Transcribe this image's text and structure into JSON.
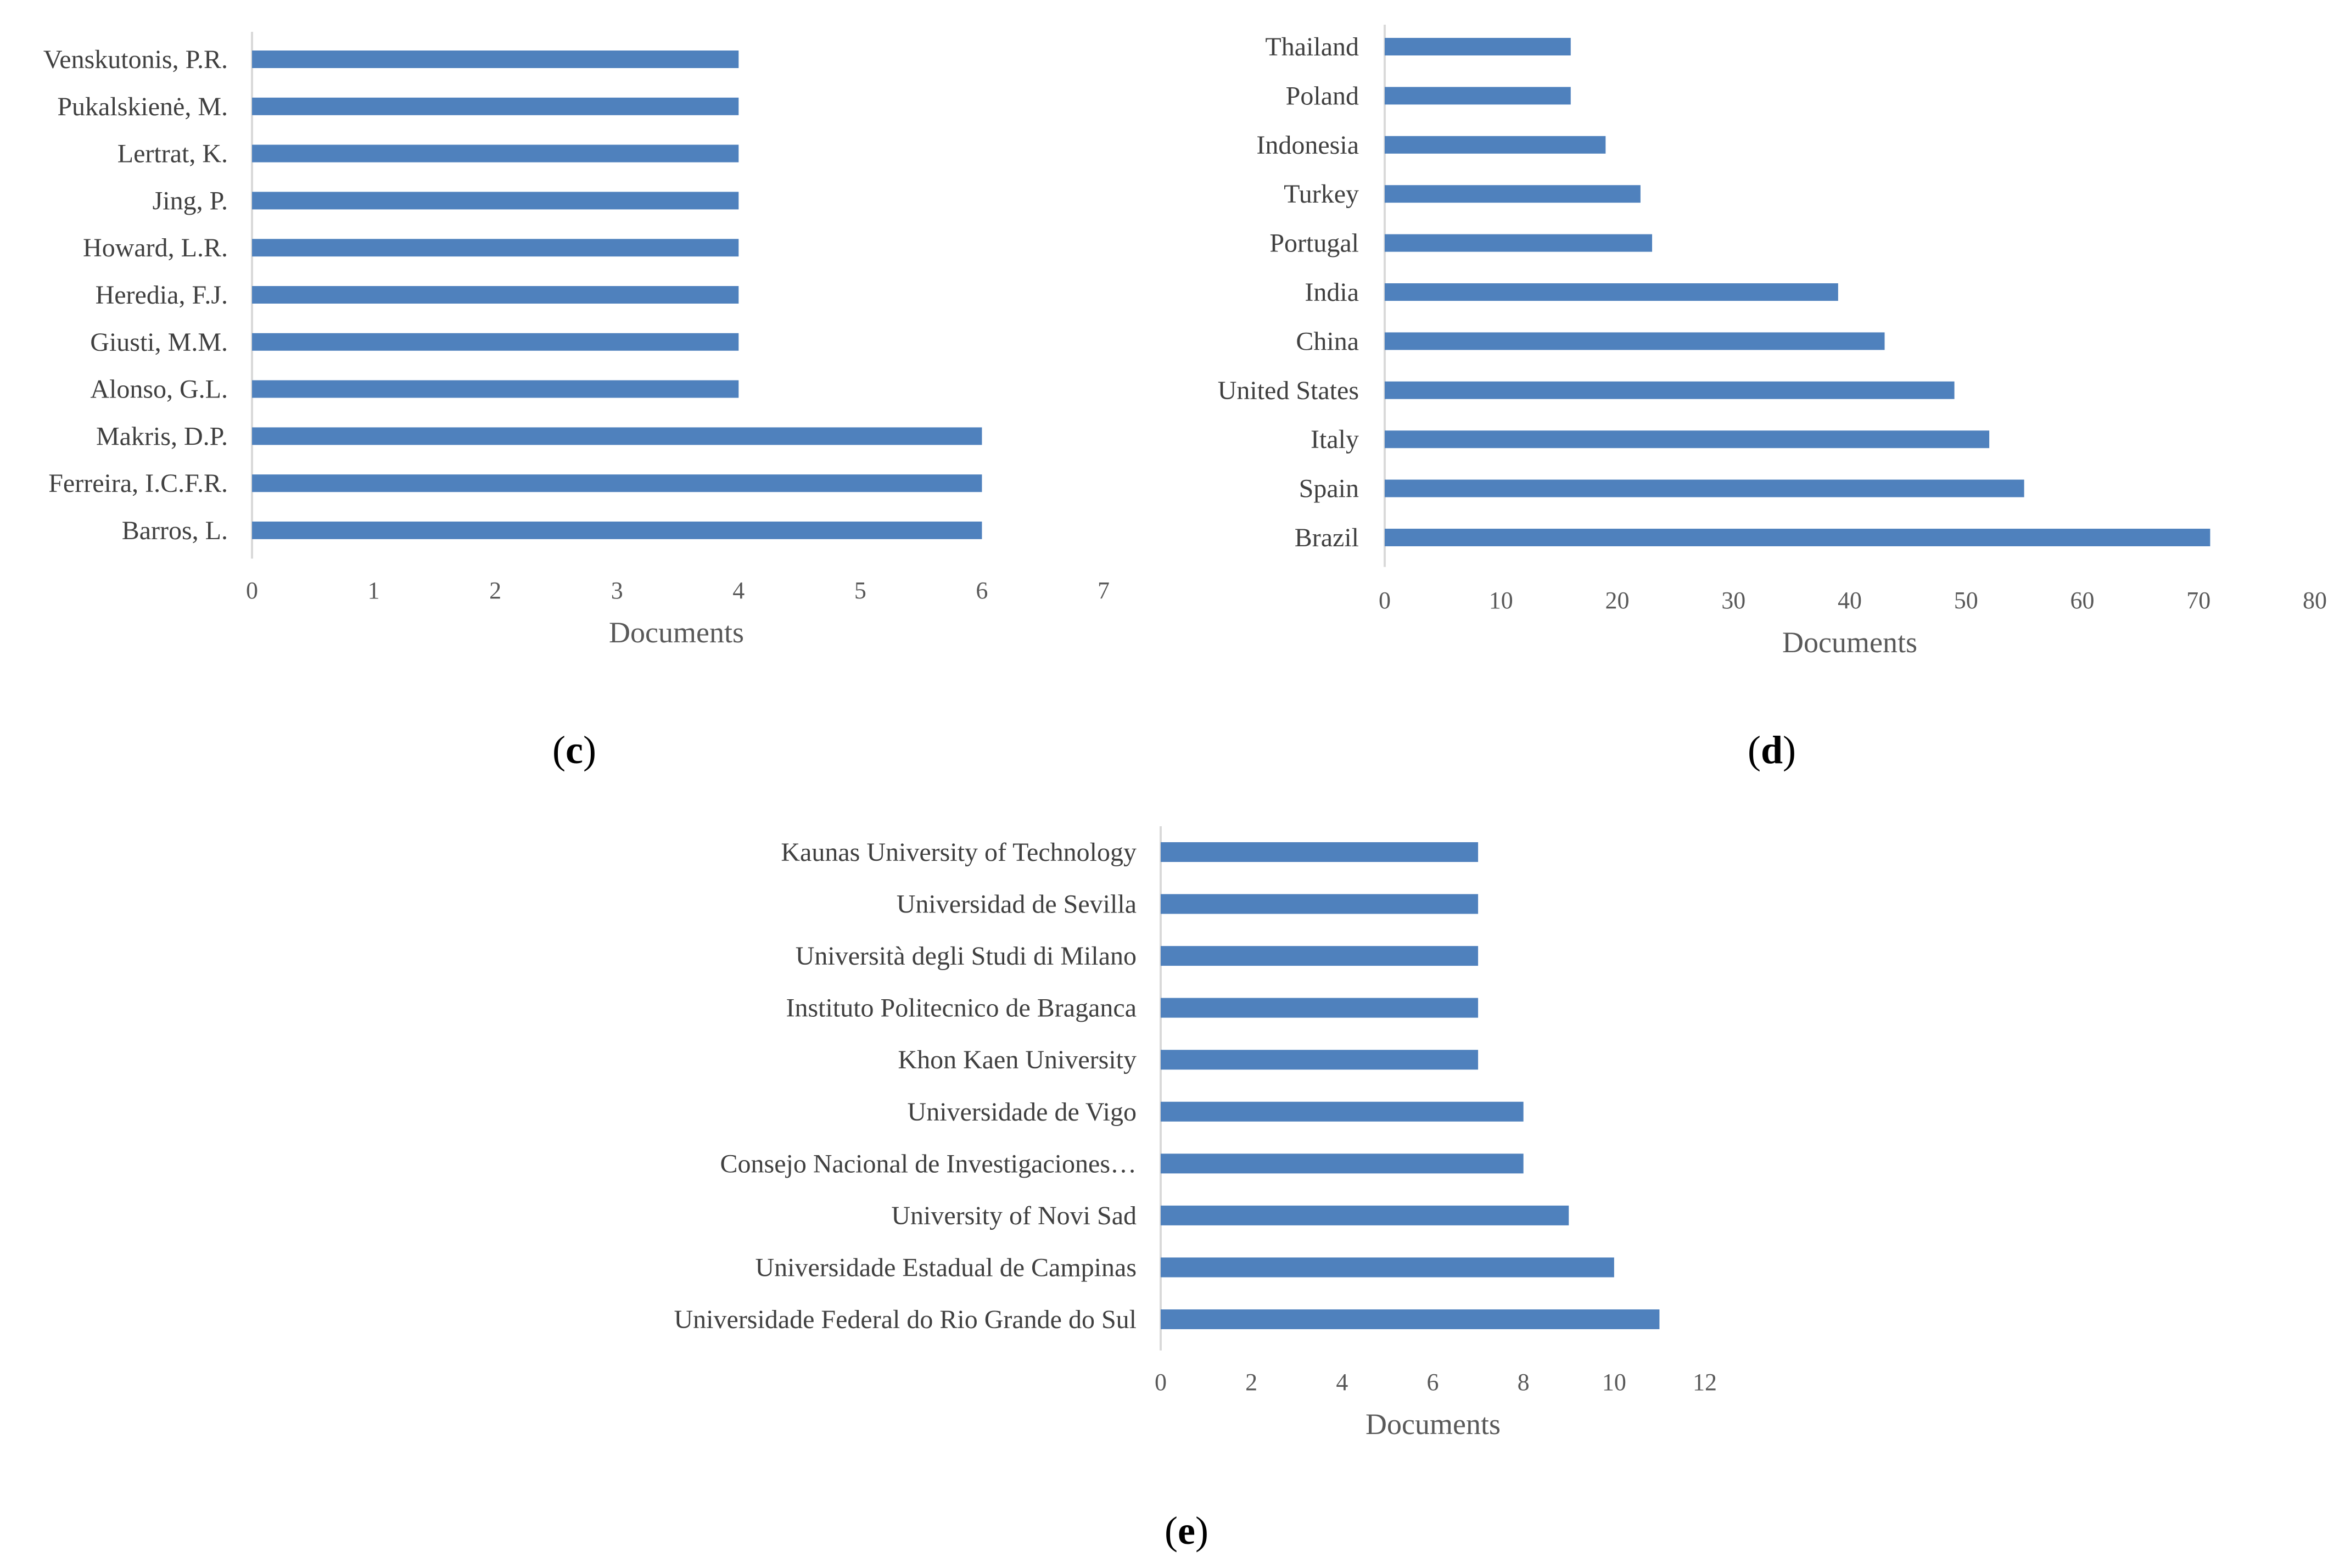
{
  "colors": {
    "bar": "#4f81bd",
    "axis": "#d9d9d9",
    "text": "#404040"
  },
  "chart_data": [
    {
      "panel": "c",
      "type": "bar",
      "orientation": "horizontal",
      "categories": [
        "Venskutonis, P.R.",
        "Pukalskienė, M.",
        "Lertrat, K.",
        "Jing, P.",
        "Howard, L.R.",
        "Heredia, F.J.",
        "Giusti, M.M.",
        "Alonso, G.L.",
        "Makris, D.P.",
        "Ferreira, I.C.F.R.",
        "Barros, L."
      ],
      "values": [
        4,
        4,
        4,
        4,
        4,
        4,
        4,
        4,
        6,
        6,
        6
      ],
      "xlabel": "Documents",
      "ylabel": "",
      "xlim": [
        0,
        7
      ],
      "ticks": [
        0,
        1,
        2,
        3,
        4,
        5,
        6,
        7
      ],
      "grid": false,
      "legend": "none"
    },
    {
      "panel": "d",
      "type": "bar",
      "orientation": "horizontal",
      "categories": [
        "Thailand",
        "Poland",
        "Indonesia",
        "Turkey",
        "Portugal",
        "India",
        "China",
        "United States",
        "Italy",
        "Spain",
        "Brazil"
      ],
      "values": [
        16,
        16,
        19,
        22,
        23,
        39,
        43,
        49,
        52,
        55,
        71
      ],
      "xlabel": "Documents",
      "ylabel": "",
      "xlim": [
        0,
        80
      ],
      "ticks": [
        0,
        10,
        20,
        30,
        40,
        50,
        60,
        70,
        80
      ],
      "grid": false,
      "legend": "none"
    },
    {
      "panel": "e",
      "type": "bar",
      "orientation": "horizontal",
      "categories": [
        "Kaunas University of Technology",
        "Universidad de Sevilla",
        "Università degli Studi di Milano",
        "Instituto Politecnico de Braganca",
        "Khon Kaen University",
        "Universidade de Vigo",
        "Consejo Nacional de Investigaciones…",
        "University of Novi Sad",
        "Universidade Estadual de Campinas",
        "Universidade Federal do Rio Grande do Sul"
      ],
      "values": [
        7,
        7,
        7,
        7,
        7,
        8,
        8,
        9,
        10,
        11
      ],
      "xlabel": "Documents",
      "ylabel": "",
      "xlim": [
        0,
        12
      ],
      "ticks": [
        0,
        2,
        4,
        6,
        8,
        10,
        12
      ],
      "grid": false,
      "legend": "none"
    }
  ]
}
